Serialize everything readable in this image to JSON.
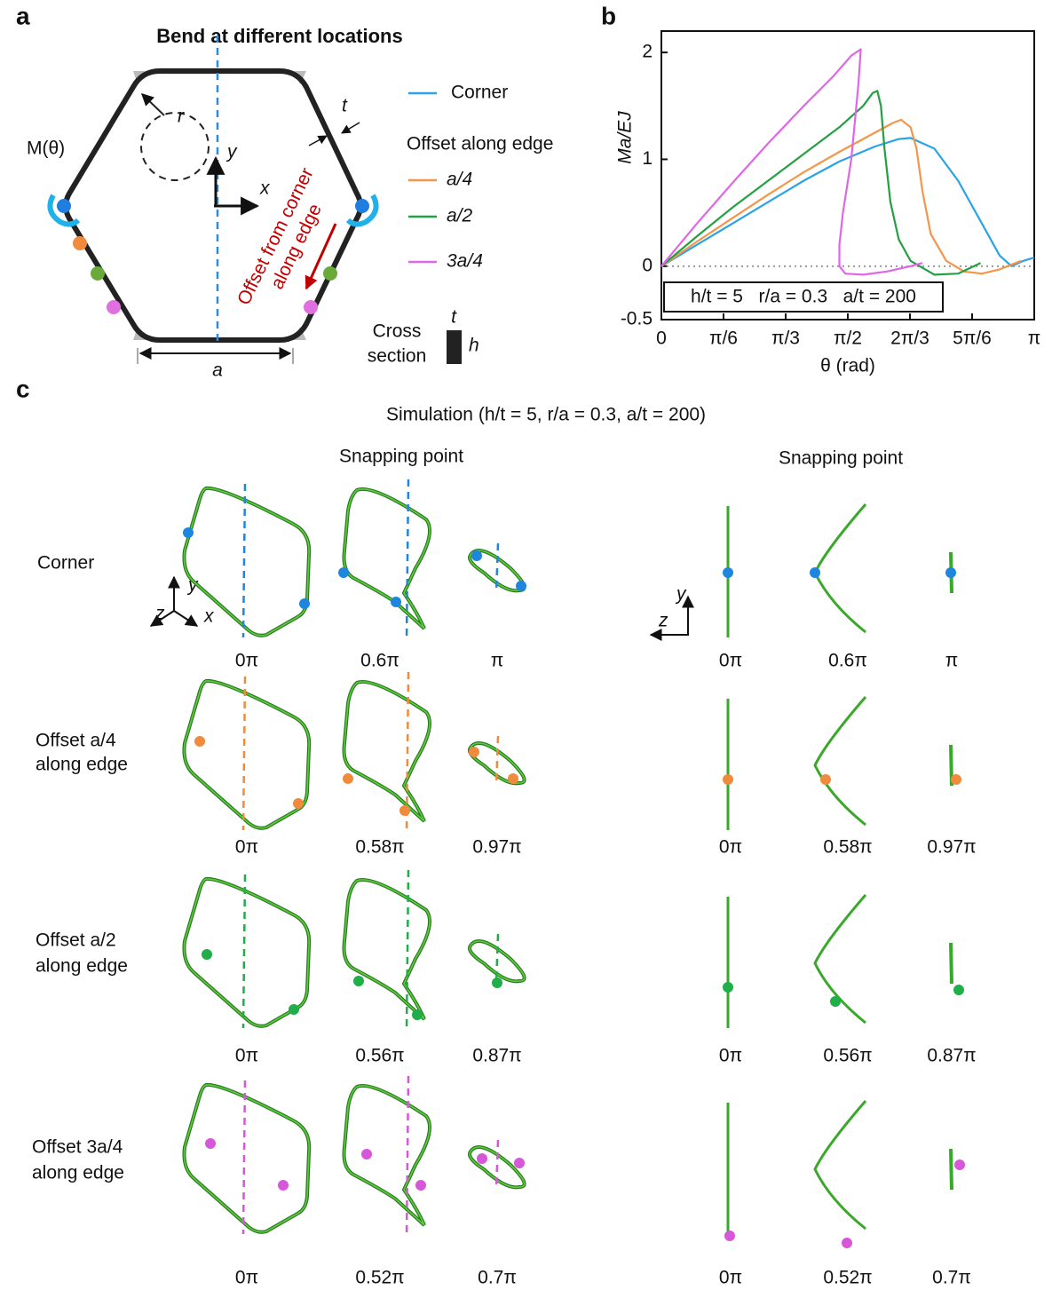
{
  "panel_a": {
    "label": "a",
    "title": "Bend at different locations",
    "moment": "M(θ)",
    "radius": "r",
    "thickness": "t",
    "y_axis": "y",
    "x_axis": "x",
    "offset_arrow": [
      "Offset from corner",
      "along edge"
    ],
    "edge_length": "a",
    "cross_section": [
      "Cross",
      "section"
    ],
    "cross_t": "t",
    "cross_h": "h"
  },
  "chart_data": {
    "type": "line",
    "panel_label": "b",
    "xlabel": "θ (rad)",
    "ylabel": "Ma/EJ",
    "legend_title": "Offset along edge",
    "annotation": "h/t = 5   r/a = 0.3   a/t = 200",
    "xlim": [
      0,
      3.1416
    ],
    "ylim": [
      -0.5,
      2.2
    ],
    "xticks": [
      0,
      {
        "value": 0.5236,
        "label": "π/6"
      },
      {
        "value": 1.0472,
        "label": "π/3"
      },
      {
        "value": 1.5708,
        "label": "π/2"
      },
      {
        "value": 2.0944,
        "label": "2π/3"
      },
      {
        "value": 2.618,
        "label": "5π/6"
      },
      {
        "value": 3.1416,
        "label": "π"
      }
    ],
    "yticks": [
      -0.5,
      0,
      1,
      2
    ],
    "zero_line": true,
    "series": [
      {
        "name": "Corner",
        "color": "#29a3e6",
        "x": [
          0,
          0.3,
          0.6,
          0.9,
          1.2,
          1.5,
          1.8,
          2.0,
          2.1,
          2.3,
          2.5,
          2.7,
          2.85,
          2.95,
          3.05,
          3.14
        ],
        "values": [
          0,
          0.2,
          0.4,
          0.6,
          0.8,
          0.98,
          1.12,
          1.19,
          1.2,
          1.1,
          0.8,
          0.4,
          0.1,
          0,
          0.05,
          0.08
        ]
      },
      {
        "name": "a/4",
        "color": "#f5954a",
        "x": [
          0,
          0.3,
          0.6,
          0.9,
          1.2,
          1.5,
          1.8,
          1.95,
          2.02,
          2.1,
          2.15,
          2.2,
          2.27,
          2.4,
          2.55,
          2.7,
          2.85,
          3.03
        ],
        "values": [
          0,
          0.23,
          0.45,
          0.67,
          0.88,
          1.07,
          1.25,
          1.34,
          1.37,
          1.3,
          1.1,
          0.7,
          0.3,
          0.05,
          -0.05,
          -0.07,
          -0.03,
          0.05
        ]
      },
      {
        "name": "a/2",
        "color": "#23a043",
        "x": [
          0,
          0.3,
          0.6,
          0.9,
          1.2,
          1.5,
          1.7,
          1.78,
          1.82,
          1.85,
          1.88,
          1.93,
          2.0,
          2.1,
          2.3,
          2.5,
          2.69
        ],
        "values": [
          0,
          0.28,
          0.55,
          0.8,
          1.05,
          1.3,
          1.5,
          1.62,
          1.64,
          1.5,
          1.1,
          0.6,
          0.25,
          0.05,
          -0.08,
          -0.07,
          0.03
        ]
      },
      {
        "name": "3a/4",
        "color": "#e066e8",
        "x": [
          0,
          0.3,
          0.6,
          0.9,
          1.2,
          1.45,
          1.6,
          1.68,
          1.66,
          1.6,
          1.53,
          1.5,
          1.5,
          1.55,
          1.7,
          1.9,
          2.1,
          2.2
        ],
        "values": [
          0,
          0.4,
          0.78,
          1.15,
          1.5,
          1.78,
          1.97,
          2.03,
          1.7,
          1,
          0.5,
          0.2,
          0,
          -0.07,
          -0.08,
          -0.05,
          0,
          0.03
        ]
      }
    ]
  },
  "panel_c": {
    "label": "c",
    "title": "Simulation (h/t = 5, r/a = 0.3, a/t = 200)",
    "column_headers": [
      "Snapping point",
      "Snapping point"
    ],
    "axes_left": {
      "y": "y",
      "z": "z",
      "x": "x"
    },
    "axes_right": {
      "y": "y",
      "z": "z"
    },
    "rows": [
      {
        "label": [
          "Corner"
        ],
        "left_angles": [
          "0π",
          "0.6π",
          "π"
        ],
        "right_angles": [
          "0π",
          "0.6π",
          "π"
        ]
      },
      {
        "label": [
          "Offset a/4",
          "along edge"
        ],
        "left_angles": [
          "0π",
          "0.58π",
          "0.97π"
        ],
        "right_angles": [
          "0π",
          "0.58π",
          "0.97π"
        ]
      },
      {
        "label": [
          "Offset a/2",
          "along edge"
        ],
        "left_angles": [
          "0π",
          "0.56π",
          "0.87π"
        ],
        "right_angles": [
          "0π",
          "0.56π",
          "0.87π"
        ]
      },
      {
        "label": [
          "Offset 3a/4",
          "along edge"
        ],
        "left_angles": [
          "0π",
          "0.52π",
          "0.7π"
        ],
        "right_angles": [
          "0π",
          "0.52π",
          "0.7π"
        ]
      }
    ]
  }
}
